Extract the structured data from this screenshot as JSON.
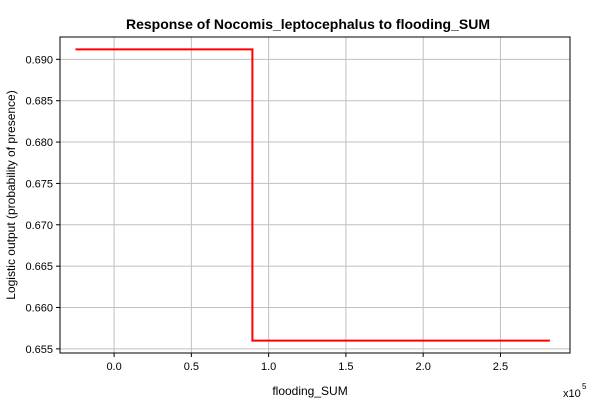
{
  "chart_data": {
    "type": "line",
    "title": "Response of Nocomis_leptocephalus to flooding_SUM",
    "xlabel": "flooding_SUM",
    "ylabel": "Logistic output (probability of presence)",
    "x_exponent_base": "x10",
    "x_exponent_power": "5",
    "xlim": [
      -0.35,
      2.95
    ],
    "ylim": [
      0.6545,
      0.6927
    ],
    "x_ticks": [
      0.0,
      0.5,
      1.0,
      1.5,
      2.0,
      2.5
    ],
    "x_tick_labels": [
      "0.0",
      "0.5",
      "1.0",
      "1.5",
      "2.0",
      "2.5"
    ],
    "y_ticks": [
      0.655,
      0.66,
      0.665,
      0.67,
      0.675,
      0.68,
      0.685,
      0.69
    ],
    "y_tick_labels": [
      "0.655",
      "0.660",
      "0.665",
      "0.670",
      "0.675",
      "0.680",
      "0.685",
      "0.690"
    ],
    "grid": true,
    "legend": "none",
    "series": [
      {
        "color": "#ff0000",
        "x": [
          -0.25,
          0.895,
          0.895,
          2.82
        ],
        "y": [
          0.6912,
          0.6912,
          0.656,
          0.656
        ]
      }
    ]
  }
}
